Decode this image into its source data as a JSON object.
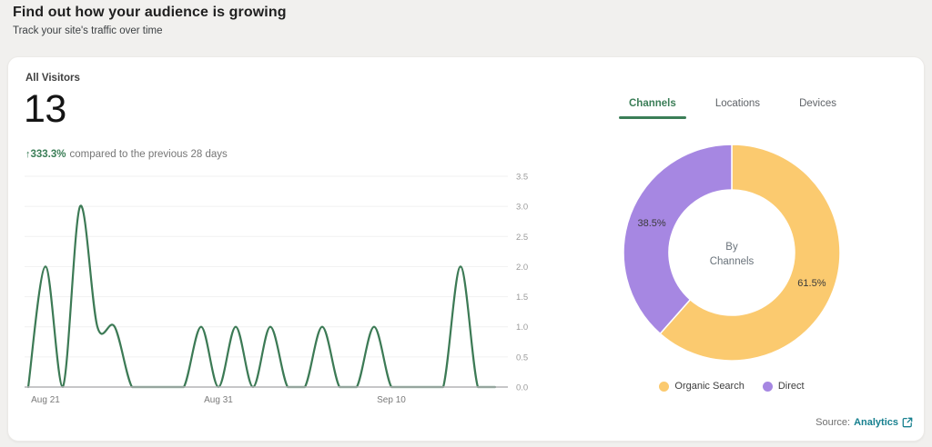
{
  "header": {
    "title": "Find out how your audience is growing",
    "subtitle": "Track your site's traffic over time"
  },
  "visitors": {
    "label": "All Visitors",
    "count": "13",
    "change_arrow": "↑",
    "change_pct": "333.3%",
    "change_text": "compared to the previous 28 days"
  },
  "tabs": [
    {
      "label": "Channels",
      "active": true
    },
    {
      "label": "Locations",
      "active": false
    },
    {
      "label": "Devices",
      "active": false
    }
  ],
  "chart_data": [
    {
      "type": "line",
      "title": "All Visitors over time",
      "x": [
        "Aug 20",
        "Aug 21",
        "Aug 22",
        "Aug 23",
        "Aug 24",
        "Aug 25",
        "Aug 26",
        "Aug 27",
        "Aug 28",
        "Aug 29",
        "Aug 30",
        "Aug 31",
        "Sep 1",
        "Sep 2",
        "Sep 3",
        "Sep 4",
        "Sep 5",
        "Sep 6",
        "Sep 7",
        "Sep 8",
        "Sep 9",
        "Sep 10",
        "Sep 11",
        "Sep 12",
        "Sep 13",
        "Sep 14",
        "Sep 15",
        "Sep 16"
      ],
      "values": [
        0,
        2,
        0,
        3,
        1,
        1,
        0,
        0,
        0,
        0,
        1,
        0,
        1,
        0,
        1,
        0,
        0,
        1,
        0,
        0,
        1,
        0,
        0,
        0,
        0,
        2,
        0,
        0
      ],
      "ylim": [
        0,
        3.5
      ],
      "y_ticks": [
        0,
        0.5,
        1,
        1.5,
        2,
        2.5,
        3,
        3.5
      ],
      "x_ticks": [
        {
          "label": "Aug 21",
          "day": 1
        },
        {
          "label": "Aug 31",
          "day": 11
        },
        {
          "label": "Sep 10",
          "day": 21
        }
      ],
      "line_color": "#3C7A55",
      "grid": true,
      "legend_position": "none"
    },
    {
      "type": "donut",
      "title": "By Channels",
      "center_label": [
        "By",
        "Channels"
      ],
      "slices": [
        {
          "label": "Organic Search",
          "value": 61.5,
          "color": "#FBCA6F"
        },
        {
          "label": "Direct",
          "value": 38.5,
          "color": "#A687E2"
        }
      ],
      "legend_position": "bottom"
    }
  ],
  "source": {
    "prefix": "Source:",
    "link_label": "Analytics"
  },
  "colors": {
    "accent_green": "#3B7E57",
    "line_green": "#3C7A55",
    "organic_search_yellow": "#FBCA6F",
    "direct_purple": "#A687E2",
    "link_teal": "#17808F",
    "page_background": "#f1f0ee",
    "grid_line": "#f1f1f1",
    "baseline": "#b3b3b6"
  }
}
